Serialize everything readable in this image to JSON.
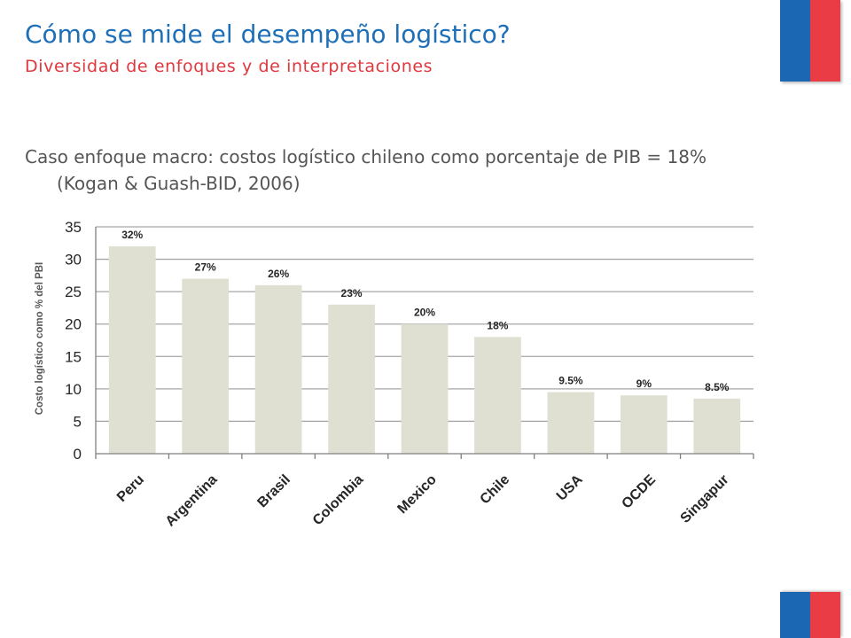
{
  "slide": {
    "title": "Cómo se mide el desempeño logístico?",
    "subtitle": "Diversidad de enfoques y de interpretaciones",
    "bullet": "Caso enfoque macro: costos logístico chileno como porcentaje de PIB = 18% (Kogan & Guash-BID, 2006)"
  },
  "colors": {
    "bar": "#e0e0d2",
    "grid": "#a6a6a6",
    "axis": "#7f7f7f",
    "flag_blue": "#1b67b3",
    "flag_red": "#ea3c44"
  },
  "chart_data": {
    "type": "bar",
    "categories": [
      "Peru",
      "Argentina",
      "Brasil",
      "Colombia",
      "Mexico",
      "Chile",
      "USA",
      "OCDE",
      "Singapur"
    ],
    "values": [
      32,
      27,
      26,
      23,
      20,
      18,
      9.5,
      9,
      8.5
    ],
    "data_labels": [
      "32%",
      "27%",
      "26%",
      "23%",
      "20%",
      "18%",
      "9.5%",
      "9%",
      "8.5%"
    ],
    "ylabel": "Costo logístico como % del PBI",
    "xlabel": "",
    "ylim": [
      0,
      35
    ],
    "yticks": [
      0,
      5,
      10,
      15,
      20,
      25,
      30,
      35
    ],
    "grid": true,
    "legend": "none"
  }
}
